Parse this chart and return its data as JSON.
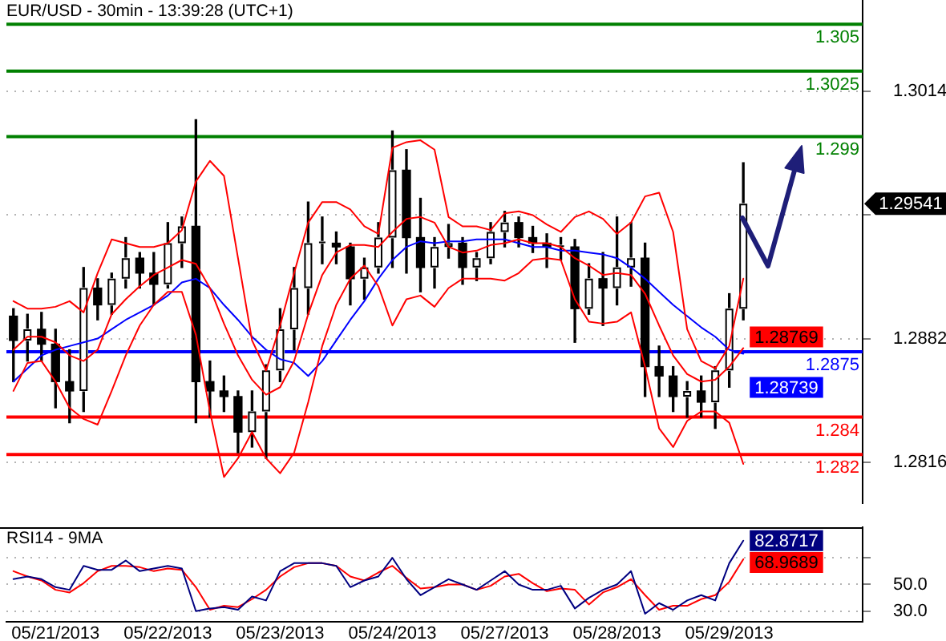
{
  "chart_data": [
    {
      "type": "candlestick",
      "title": "EUR/USD - 30min - 13:39:28 (UTC+1)",
      "categories": [
        null,
        null,
        null,
        null,
        null,
        null,
        null,
        null,
        null,
        null,
        null,
        null,
        null,
        null,
        null,
        null,
        null,
        null,
        null,
        null,
        null,
        null,
        null,
        null,
        null,
        null,
        null,
        null,
        null,
        null,
        null,
        null,
        null,
        null,
        null,
        null,
        null,
        null,
        null,
        null,
        null,
        null,
        null,
        null,
        null,
        null,
        null,
        null,
        null,
        null,
        null,
        null,
        null,
        null,
        null,
        null,
        null,
        null,
        null,
        null,
        null
      ],
      "ohlc": [
        [
          1.2894,
          1.2898,
          1.2859,
          1.2881
        ],
        [
          1.2881,
          1.2895,
          1.287,
          1.2887
        ],
        [
          1.2887,
          1.2896,
          1.287,
          1.2879
        ],
        [
          1.2879,
          1.2887,
          1.2845,
          1.2859
        ],
        [
          1.2859,
          1.2876,
          1.2837,
          1.2854
        ],
        [
          1.2854,
          1.292,
          1.2843,
          1.2909
        ],
        [
          1.2909,
          1.2914,
          1.2892,
          1.29
        ],
        [
          1.29,
          1.2917,
          1.2895,
          1.2914
        ],
        [
          1.2914,
          1.2936,
          1.2909,
          1.2925
        ],
        [
          1.2925,
          1.2928,
          1.2909,
          1.2917
        ],
        [
          1.2917,
          1.2928,
          1.29,
          1.2911
        ],
        [
          1.2911,
          1.2944,
          1.2909,
          1.2933
        ],
        [
          1.2933,
          1.2947,
          1.292,
          1.2942
        ],
        [
          1.2942,
          1.2999,
          1.2837,
          1.2859
        ],
        [
          1.2859,
          1.287,
          1.284,
          1.2854
        ],
        [
          1.2854,
          1.2862,
          1.2843,
          1.2851
        ],
        [
          1.2851,
          1.2854,
          1.2821,
          1.2832
        ],
        [
          1.2832,
          1.2854,
          1.2824,
          1.2843
        ],
        [
          1.2843,
          1.2868,
          1.2818,
          1.2865
        ],
        [
          1.2865,
          1.2898,
          1.2859,
          1.2887
        ],
        [
          1.2887,
          1.292,
          1.2876,
          1.2909
        ],
        [
          1.2909,
          1.2955,
          1.2895,
          1.2933
        ],
        [
          1.2933,
          1.2947,
          1.2922,
          1.2933
        ],
        [
          1.2933,
          1.2939,
          1.2922,
          1.2931
        ],
        [
          1.2931,
          1.2933,
          1.29,
          1.2914
        ],
        [
          1.2914,
          1.2925,
          1.2903,
          1.292
        ],
        [
          1.292,
          1.2944,
          1.2917,
          1.2936
        ],
        [
          1.2936,
          1.2993,
          1.292,
          1.2972
        ],
        [
          1.2972,
          1.2983,
          1.2917,
          1.2936
        ],
        [
          1.2936,
          1.2957,
          1.2907,
          1.292
        ],
        [
          1.292,
          1.2936,
          1.2909,
          1.2931
        ],
        [
          1.2931,
          1.2943,
          1.2925,
          1.2933
        ],
        [
          1.2933,
          1.2936,
          1.2911,
          1.292
        ],
        [
          1.292,
          1.2928,
          1.2913,
          1.2925
        ],
        [
          1.2925,
          1.2944,
          1.2922,
          1.2939
        ],
        [
          1.2939,
          1.295,
          1.2931,
          1.2944
        ],
        [
          1.2944,
          1.2947,
          1.2931,
          1.2936
        ],
        [
          1.2936,
          1.2942,
          1.2928,
          1.2933
        ],
        [
          1.2933,
          1.2938,
          1.292,
          1.2931
        ],
        [
          1.2931,
          1.2936,
          1.2924,
          1.2931
        ],
        [
          1.2931,
          1.2935,
          1.288,
          1.2898
        ],
        [
          1.2898,
          1.2922,
          1.2895,
          1.2914
        ],
        [
          1.2914,
          1.2928,
          1.2889,
          1.2909
        ],
        [
          1.2909,
          1.2947,
          1.29,
          1.292
        ],
        [
          1.292,
          1.2944,
          1.291,
          1.2925
        ],
        [
          1.2925,
          1.2933,
          1.2851,
          1.2867
        ],
        [
          1.2867,
          1.2878,
          1.2851,
          1.2862
        ],
        [
          1.2862,
          1.2867,
          1.2843,
          1.2851
        ],
        [
          1.2851,
          1.2859,
          1.284,
          1.2854
        ],
        [
          1.2854,
          1.2862,
          1.284,
          1.2848
        ],
        [
          1.2848,
          1.2867,
          1.2834,
          1.2865
        ],
        [
          1.2865,
          1.2906,
          1.2856,
          1.2898
        ],
        [
          1.2898,
          1.2976,
          1.2892,
          1.29541
        ],
        null,
        null,
        null,
        null,
        null,
        null,
        null,
        null
      ],
      "color": "#000000",
      "colors": [
        "#000000",
        "#ffffff",
        "#000000",
        "#000000",
        "#000000",
        "#ffffff",
        "#000000",
        "#ffffff",
        "#ffffff",
        "#000000",
        "#000000",
        "#ffffff",
        "#ffffff",
        "#000000",
        "#000000",
        "#000000",
        "#000000",
        "#ffffff",
        "#ffffff",
        "#ffffff",
        "#ffffff",
        "#ffffff",
        "#ffffff",
        "#000000",
        "#000000",
        "#ffffff",
        "#ffffff",
        "#ffffff",
        "#000000",
        "#000000",
        "#ffffff",
        "#ffffff",
        "#000000",
        "#ffffff",
        "#ffffff",
        "#ffffff",
        "#000000",
        "#000000",
        "#000000",
        "#ffffff",
        "#000000",
        "#ffffff",
        "#000000",
        "#ffffff",
        "#ffffff",
        "#000000",
        "#000000",
        "#000000",
        "#ffffff",
        "#000000",
        "#ffffff",
        "#ffffff",
        "#ffffff",
        null,
        null,
        null,
        null,
        null,
        null,
        null,
        null
      ],
      "value_labels": [
        null,
        null,
        null,
        null,
        null,
        null,
        null,
        null,
        null,
        null,
        null,
        null,
        null,
        null,
        null,
        null,
        null,
        null,
        null,
        null,
        null,
        null,
        null,
        null,
        null,
        null,
        null,
        null,
        null,
        null,
        null,
        null,
        null,
        null,
        null,
        null,
        null,
        null,
        null,
        null,
        null,
        null,
        null,
        null,
        null,
        null,
        null,
        null,
        null,
        null,
        null,
        null,
        "1.29541",
        null,
        null,
        null,
        null,
        null,
        null,
        null,
        null
      ],
      "series": [
        {
          "type": "line",
          "color": "#ff0000",
          "values": [
            1.2902,
            1.2898,
            1.2898,
            1.2899,
            1.2902,
            1.2896,
            1.2917,
            1.2935,
            1.2933,
            1.2931,
            1.2931,
            1.2933,
            1.294,
            1.2966,
            1.2977,
            1.2969,
            1.2925,
            1.2881,
            1.2865,
            1.2889,
            1.2917,
            1.2944,
            1.2955,
            1.2955,
            1.2951,
            1.2942,
            1.2938,
            1.2984,
            1.2987,
            1.2988,
            1.2983,
            1.2947,
            1.2942,
            1.2942,
            1.294,
            1.2949,
            1.295,
            1.2948,
            1.2943,
            1.2939,
            1.2947,
            1.295,
            1.2946,
            1.2938,
            1.2944,
            1.2958,
            1.296,
            1.2939,
            1.2887,
            1.287,
            1.2866,
            1.2878,
            1.2914,
            null,
            null,
            null,
            null,
            null,
            null,
            null,
            null
          ]
        },
        {
          "type": "line",
          "color": "#ff0000",
          "values": [
            1.2876,
            1.2883,
            1.2883,
            1.288,
            1.2873,
            1.287,
            1.2876,
            1.2895,
            1.2903,
            1.291,
            1.2916,
            1.292,
            1.2924,
            1.2922,
            1.2909,
            1.289,
            1.2873,
            1.286,
            1.2852,
            1.2856,
            1.287,
            1.2895,
            1.2916,
            1.2928,
            1.2932,
            1.2932,
            1.2931,
            1.2939,
            1.2946,
            1.2947,
            1.2944,
            1.2931,
            1.2928,
            1.2929,
            1.2932,
            1.2933,
            1.2935,
            1.2933,
            1.2933,
            1.2931,
            1.2925,
            1.2921,
            1.2916,
            1.2917,
            1.2916,
            1.2906,
            1.2889,
            1.2873,
            1.2863,
            1.2859,
            1.286,
            1.2867,
            1.28769,
            null,
            null,
            null,
            null,
            null,
            null,
            null,
            null
          ],
          "value_labels": [
            null,
            null,
            null,
            null,
            null,
            null,
            null,
            null,
            null,
            null,
            null,
            null,
            null,
            null,
            null,
            null,
            null,
            null,
            null,
            null,
            null,
            null,
            null,
            null,
            null,
            null,
            null,
            null,
            null,
            null,
            null,
            null,
            null,
            null,
            null,
            null,
            null,
            null,
            null,
            null,
            null,
            null,
            null,
            null,
            null,
            null,
            null,
            null,
            null,
            null,
            null,
            null,
            "1.28769",
            null,
            null,
            null,
            null,
            null,
            null,
            null,
            null
          ]
        },
        {
          "type": "line",
          "color": "#ff0000",
          "values": [
            1.2854,
            1.2869,
            1.287,
            1.2859,
            1.2845,
            1.2839,
            1.2836,
            1.2854,
            1.2873,
            1.2889,
            1.29,
            1.2907,
            1.2907,
            1.2884,
            1.2843,
            1.2808,
            1.2818,
            1.2832,
            1.2818,
            1.281,
            1.2821,
            1.2848,
            1.2878,
            1.29,
            1.2914,
            1.2921,
            1.291,
            1.2889,
            1.2903,
            1.2905,
            1.2899,
            1.2909,
            1.2914,
            1.2914,
            1.2914,
            1.2913,
            1.2917,
            1.2924,
            1.2925,
            1.2924,
            1.2903,
            1.2891,
            1.289,
            1.2891,
            1.2896,
            1.2867,
            1.2834,
            1.2824,
            1.2838,
            1.2843,
            1.2843,
            1.2837,
            1.2815,
            null,
            null,
            null,
            null,
            null,
            null,
            null,
            null
          ]
        },
        {
          "type": "line",
          "color": "#0000ff",
          "values": [
            1.2859,
            1.2866,
            1.2873,
            1.2876,
            1.2878,
            1.288,
            1.2882,
            1.2887,
            1.2892,
            1.2896,
            1.29,
            1.2905,
            1.2912,
            1.2914,
            1.2909,
            1.29,
            1.2892,
            1.2883,
            1.2876,
            1.2871,
            1.2869,
            1.2862,
            1.287,
            1.2881,
            1.2892,
            1.2902,
            1.2914,
            1.2924,
            1.2931,
            1.2934,
            1.2933,
            1.2934,
            1.2934,
            1.2935,
            1.2935,
            1.2935,
            1.2933,
            1.2931,
            1.2931,
            1.2929,
            1.2929,
            1.2928,
            1.2927,
            1.2925,
            1.292,
            1.2914,
            1.2907,
            1.29,
            1.2894,
            1.2888,
            1.2883,
            1.2876,
            1.28739,
            null,
            null,
            null,
            null,
            null,
            null,
            null,
            null
          ],
          "value_labels": [
            null,
            null,
            null,
            null,
            null,
            null,
            null,
            null,
            null,
            null,
            null,
            null,
            null,
            null,
            null,
            null,
            null,
            null,
            null,
            null,
            null,
            null,
            null,
            null,
            null,
            null,
            null,
            null,
            null,
            null,
            null,
            null,
            null,
            null,
            null,
            null,
            null,
            null,
            null,
            null,
            null,
            null,
            null,
            null,
            null,
            null,
            null,
            null,
            null,
            null,
            null,
            null,
            "1.28739",
            null,
            null,
            null,
            null,
            null,
            null,
            null,
            null
          ]
        }
      ],
      "ylim": [
        1.2794,
        1.3063
      ],
      "yticks": [
        1.2816,
        1.2882,
        {
          "value": 1.2948,
          "label": null
        },
        1.3014
      ],
      "grid": "y",
      "tick_labels": "y",
      "ref_lines": [
        {
          "axis": "y",
          "value": 1.305,
          "label": "1.305",
          "color": "#008000"
        },
        {
          "axis": "y",
          "value": 1.3025,
          "label": "1.3025",
          "color": "#008000"
        },
        {
          "axis": "y",
          "value": 1.299,
          "label": "1.299",
          "color": "#008000"
        },
        {
          "axis": "y",
          "value": 1.2875,
          "label": "1.2875",
          "color": "#0000ff"
        },
        {
          "axis": "y",
          "value": 1.284,
          "label": "1.284",
          "color": "#ff0000"
        },
        {
          "axis": "y",
          "value": 1.282,
          "label": "1.282",
          "color": "#ff0000"
        }
      ]
    },
    {
      "type": "line",
      "title": "RSI14 - 9MA",
      "categories": [
        null,
        null,
        null,
        "05/21/2013",
        null,
        null,
        null,
        null,
        null,
        null,
        null,
        "05/22/2013",
        null,
        null,
        null,
        null,
        null,
        null,
        null,
        "05/23/2013",
        null,
        null,
        null,
        null,
        null,
        null,
        null,
        "05/24/2013",
        null,
        null,
        null,
        null,
        null,
        null,
        null,
        "05/27/2013",
        null,
        null,
        null,
        null,
        null,
        null,
        null,
        "05/28/2013",
        null,
        null,
        null,
        null,
        null,
        null,
        null,
        "05/29/2013",
        null,
        null,
        null,
        null,
        null,
        null,
        null,
        null,
        null
      ],
      "series": [
        {
          "color": "#000080",
          "values": [
            54,
            56,
            54,
            48,
            46,
            64,
            61,
            61,
            68,
            60,
            62,
            64,
            62,
            30,
            32,
            33,
            31,
            41,
            38,
            60,
            66,
            66,
            66,
            64,
            48,
            53,
            56,
            70,
            54,
            42,
            48,
            54,
            50,
            46,
            53,
            60,
            50,
            46,
            46,
            49,
            32,
            40,
            46,
            50,
            60,
            28,
            36,
            31,
            38,
            42,
            38,
            66,
            82.8717,
            null,
            null,
            null,
            null,
            null,
            null,
            null,
            null
          ],
          "value_labels": [
            null,
            null,
            null,
            null,
            null,
            null,
            null,
            null,
            null,
            null,
            null,
            null,
            null,
            null,
            null,
            null,
            null,
            null,
            null,
            null,
            null,
            null,
            null,
            null,
            null,
            null,
            null,
            null,
            null,
            null,
            null,
            null,
            null,
            null,
            null,
            null,
            null,
            null,
            null,
            null,
            null,
            null,
            null,
            null,
            null,
            null,
            null,
            null,
            null,
            null,
            null,
            null,
            "82.8717",
            null,
            null,
            null,
            null,
            null,
            null,
            null,
            null
          ]
        },
        {
          "color": "#ff0000",
          "values": [
            60,
            56,
            53,
            46,
            44,
            51,
            60,
            64,
            64,
            63,
            60,
            62,
            61,
            48,
            31,
            34,
            33,
            39,
            46,
            56,
            63,
            66,
            66,
            64,
            56,
            53,
            59,
            64,
            55,
            47,
            48,
            50,
            50,
            46,
            49,
            56,
            58,
            51,
            45,
            47,
            46,
            35,
            44,
            48,
            54,
            42,
            31,
            34,
            34,
            39,
            42,
            52,
            68.9689,
            null,
            null,
            null,
            null,
            null,
            null,
            null,
            null
          ],
          "value_labels": [
            null,
            null,
            null,
            null,
            null,
            null,
            null,
            null,
            null,
            null,
            null,
            null,
            null,
            null,
            null,
            null,
            null,
            null,
            null,
            null,
            null,
            null,
            null,
            null,
            null,
            null,
            null,
            null,
            null,
            null,
            null,
            null,
            null,
            null,
            null,
            null,
            null,
            null,
            null,
            null,
            null,
            null,
            null,
            null,
            null,
            null,
            null,
            null,
            null,
            null,
            null,
            null,
            "68.9689",
            null,
            null,
            null,
            null,
            null,
            null,
            null,
            null
          ]
        }
      ],
      "ylim": [
        22,
        93
      ],
      "yticks": [
        {
          "value": 30,
          "label": "30.0"
        },
        {
          "value": 50,
          "label": "50.0"
        },
        {
          "value": 70,
          "label": null
        }
      ],
      "grid": "y"
    }
  ]
}
